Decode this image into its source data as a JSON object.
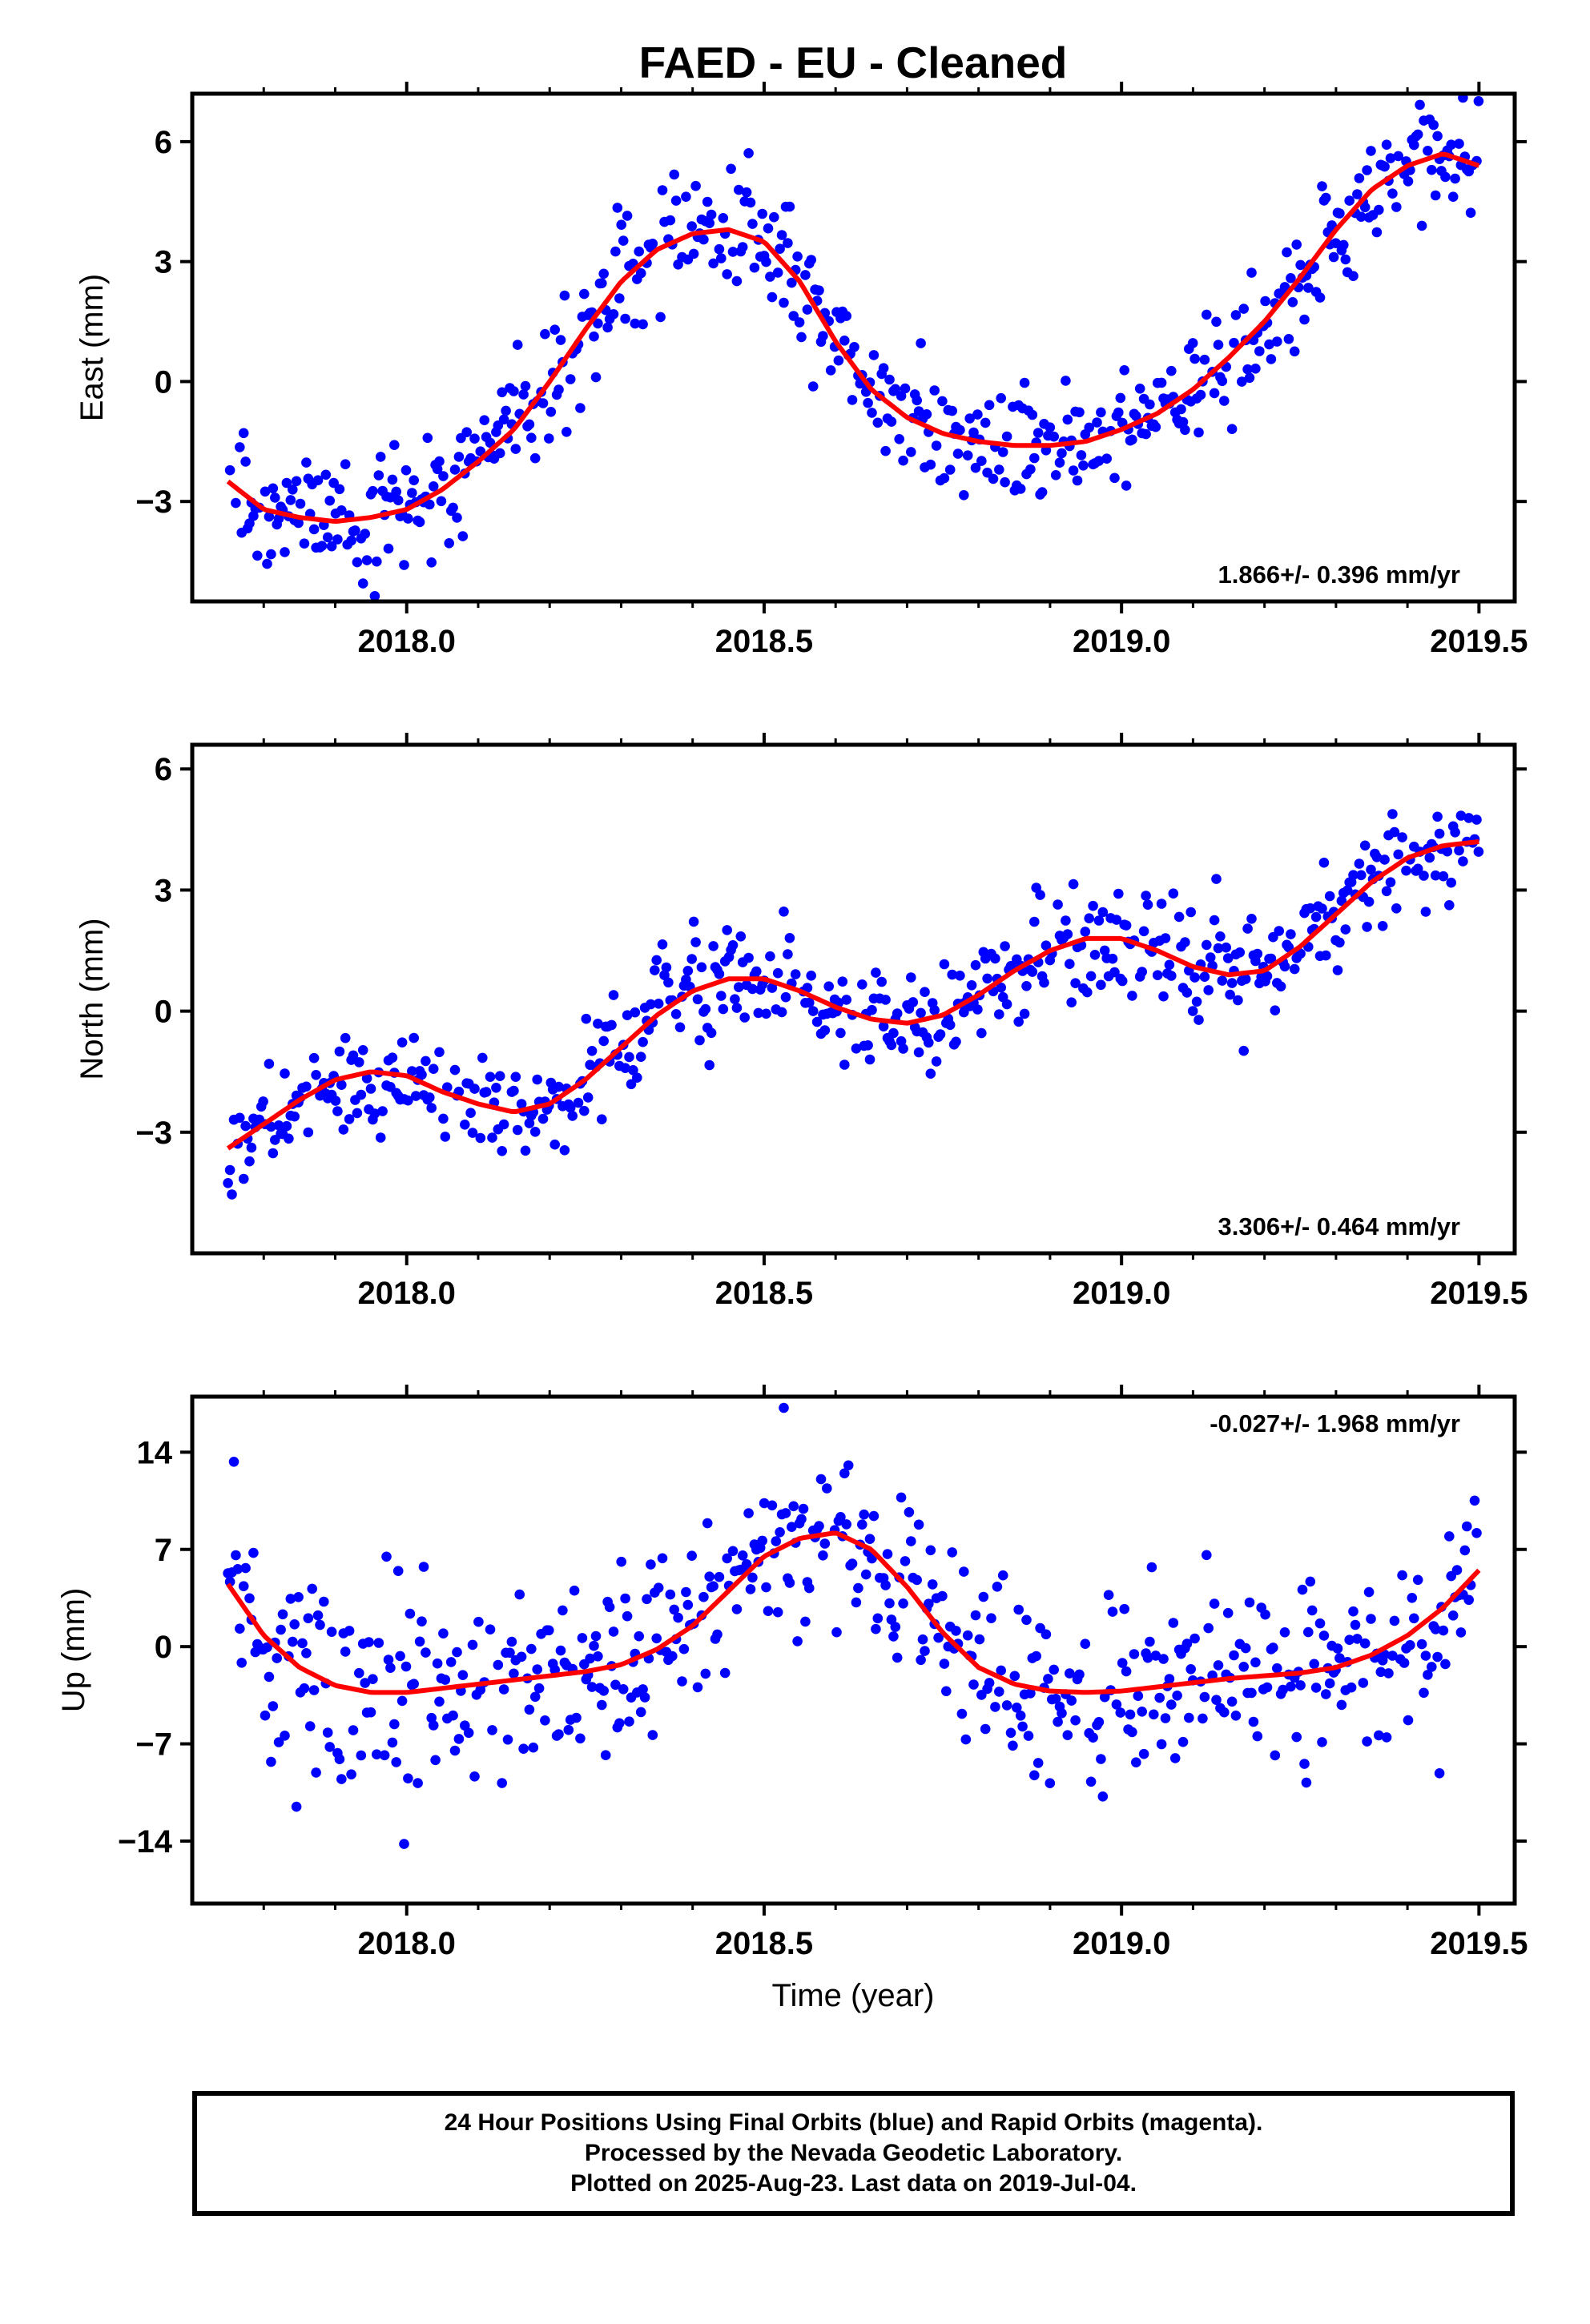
{
  "title": "FAED  - EU - Cleaned",
  "xlabel": "Time (year)",
  "footer": {
    "line1": "24 Hour Positions Using Final Orbits (blue) and Rapid Orbits (magenta).",
    "line2": "Processed by the Nevada Geodetic Laboratory.",
    "line3": "Plotted on 2025-Aug-23. Last data on 2019-Jul-04."
  },
  "colors": {
    "points": "#0000ff",
    "fit": "#ff0000",
    "axes": "#000000"
  },
  "chart_data": [
    {
      "type": "scatter",
      "ylabel": "East (mm)",
      "xlim": [
        2017.7,
        2019.55
      ],
      "ylim": [
        -5.5,
        7.2
      ],
      "xticks": [
        "2018.0",
        "2018.5",
        "2019.0",
        "2019.5"
      ],
      "yticks": [
        "-3",
        "0",
        "3",
        "6"
      ],
      "rate_label": "1.866+/- 0.396 mm/yr",
      "rate_position": "bottom-right",
      "series": [
        {
          "x": [
            2017.75,
            2017.8,
            2017.85,
            2017.9,
            2017.95,
            2018.0,
            2018.05,
            2018.1,
            2018.15,
            2018.2,
            2018.25,
            2018.3,
            2018.35,
            2018.4,
            2018.45,
            2018.5,
            2018.55,
            2018.6,
            2018.65,
            2018.7,
            2018.75,
            2018.8,
            2018.85,
            2018.9,
            2018.95,
            2019.0,
            2019.05,
            2019.1,
            2019.15,
            2019.2,
            2019.25,
            2019.3,
            2019.35,
            2019.4,
            2019.45,
            2019.5
          ],
          "y": [
            -2.5,
            -3.2,
            -3.4,
            -3.5,
            -3.4,
            -3.2,
            -2.7,
            -2.0,
            -1.2,
            0.0,
            1.3,
            2.5,
            3.3,
            3.7,
            3.8,
            3.5,
            2.5,
            1.0,
            -0.2,
            -0.9,
            -1.3,
            -1.5,
            -1.6,
            -1.6,
            -1.5,
            -1.2,
            -0.8,
            -0.2,
            0.6,
            1.5,
            2.6,
            3.8,
            4.8,
            5.4,
            5.7,
            5.4
          ]
        }
      ]
    },
    {
      "type": "scatter",
      "ylabel": "North (mm)",
      "xlim": [
        2017.7,
        2019.55
      ],
      "ylim": [
        -6.0,
        6.6
      ],
      "xticks": [
        "2018.0",
        "2018.5",
        "2019.0",
        "2019.5"
      ],
      "yticks": [
        "-3",
        "0",
        "3",
        "6"
      ],
      "rate_label": "3.306+/- 0.464 mm/yr",
      "rate_position": "bottom-right",
      "series": [
        {
          "x": [
            2017.75,
            2017.8,
            2017.85,
            2017.9,
            2017.95,
            2018.0,
            2018.05,
            2018.1,
            2018.15,
            2018.2,
            2018.25,
            2018.3,
            2018.35,
            2018.4,
            2018.45,
            2018.5,
            2018.55,
            2018.6,
            2018.65,
            2018.7,
            2018.75,
            2018.8,
            2018.85,
            2018.9,
            2018.95,
            2019.0,
            2019.05,
            2019.1,
            2019.15,
            2019.2,
            2019.25,
            2019.3,
            2019.35,
            2019.4,
            2019.45,
            2019.5
          ],
          "y": [
            -3.4,
            -2.8,
            -2.2,
            -1.7,
            -1.5,
            -1.6,
            -2.0,
            -2.3,
            -2.5,
            -2.3,
            -1.7,
            -0.9,
            -0.1,
            0.5,
            0.8,
            0.8,
            0.5,
            0.1,
            -0.2,
            -0.3,
            -0.1,
            0.4,
            1.0,
            1.5,
            1.8,
            1.8,
            1.5,
            1.1,
            0.9,
            1.0,
            1.6,
            2.4,
            3.2,
            3.8,
            4.1,
            4.2
          ]
        }
      ]
    },
    {
      "type": "scatter",
      "ylabel": "Up (mm)",
      "xlim": [
        2017.7,
        2019.55
      ],
      "ylim": [
        -18.5,
        18.0
      ],
      "xticks": [
        "2018.0",
        "2018.5",
        "2019.0",
        "2019.5"
      ],
      "yticks": [
        "-14",
        "-7",
        "0",
        "7",
        "14"
      ],
      "rate_label": "-0.027+/- 1.968 mm/yr",
      "rate_position": "top-right",
      "series": [
        {
          "x": [
            2017.75,
            2017.8,
            2017.85,
            2017.9,
            2017.95,
            2018.0,
            2018.05,
            2018.1,
            2018.15,
            2018.2,
            2018.25,
            2018.3,
            2018.35,
            2018.4,
            2018.45,
            2018.5,
            2018.55,
            2018.6,
            2018.65,
            2018.7,
            2018.75,
            2018.8,
            2018.85,
            2018.9,
            2018.95,
            2019.0,
            2019.05,
            2019.1,
            2019.15,
            2019.2,
            2019.25,
            2019.3,
            2019.35,
            2019.4,
            2019.45,
            2019.5
          ],
          "y": [
            4.5,
            0.8,
            -1.5,
            -2.8,
            -3.3,
            -3.3,
            -3.0,
            -2.7,
            -2.4,
            -2.1,
            -1.8,
            -1.3,
            -0.2,
            1.5,
            4.0,
            6.5,
            7.8,
            8.2,
            7.0,
            4.3,
            1.0,
            -1.5,
            -2.7,
            -3.2,
            -3.3,
            -3.2,
            -2.9,
            -2.6,
            -2.3,
            -2.1,
            -1.9,
            -1.5,
            -0.6,
            0.8,
            2.8,
            5.5
          ]
        }
      ]
    }
  ]
}
